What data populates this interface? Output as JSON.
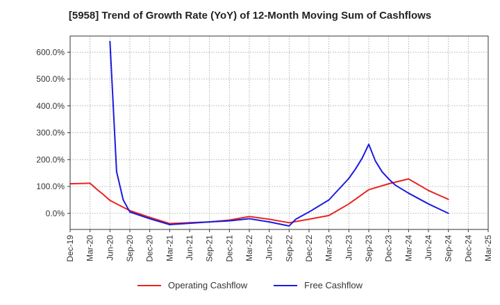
{
  "chart_data": {
    "type": "line",
    "title": "[5958]  Trend of Growth Rate (YoY) of 12-Month Moving Sum of Cashflows",
    "xlabel": "",
    "ylabel": "",
    "x_ticks": [
      "Dec-19",
      "Mar-20",
      "Jun-20",
      "Sep-20",
      "Dec-20",
      "Mar-21",
      "Jun-21",
      "Sep-21",
      "Dec-21",
      "Mar-22",
      "Jun-22",
      "Sep-22",
      "Dec-22",
      "Mar-23",
      "Jun-23",
      "Sep-23",
      "Dec-23",
      "Mar-24",
      "Jun-24",
      "Sep-24",
      "Dec-24",
      "Mar-25"
    ],
    "y_ticks": [
      "0.0%",
      "100.0%",
      "200.0%",
      "300.0%",
      "400.0%",
      "500.0%",
      "600.0%"
    ],
    "y_tick_values": [
      0,
      100,
      200,
      300,
      400,
      500,
      600
    ],
    "ylim": [
      -60,
      660
    ],
    "grid": true,
    "legend_position": "bottom",
    "series": [
      {
        "name": "Operating Cashflow",
        "color": "#e8231e",
        "points": [
          [
            "Dec-19",
            110
          ],
          [
            "Mar-20",
            112
          ],
          [
            "Apr-20",
            90
          ],
          [
            "May-20",
            70
          ],
          [
            "Jun-20",
            48
          ],
          [
            "Sep-20",
            10
          ],
          [
            "Dec-20",
            -15
          ],
          [
            "Mar-21",
            -38
          ],
          [
            "Jun-21",
            -35
          ],
          [
            "Sep-21",
            -32
          ],
          [
            "Dec-21",
            -25
          ],
          [
            "Mar-22",
            -12
          ],
          [
            "Jun-22",
            -22
          ],
          [
            "Sep-22",
            -35
          ],
          [
            "Dec-22",
            -22
          ],
          [
            "Mar-23",
            -8
          ],
          [
            "Jun-23",
            35
          ],
          [
            "Sep-23",
            88
          ],
          [
            "Dec-23",
            110
          ],
          [
            "Mar-24",
            128
          ],
          [
            "Jun-24",
            85
          ],
          [
            "Sep-24",
            52
          ]
        ]
      },
      {
        "name": "Free Cashflow",
        "color": "#1a1ae0",
        "points": [
          [
            "Jun-20",
            640
          ],
          [
            "Jul-20",
            155
          ],
          [
            "Aug-20",
            50
          ],
          [
            "Sep-20",
            5
          ],
          [
            "Dec-20",
            -20
          ],
          [
            "Mar-21",
            -42
          ],
          [
            "Jun-21",
            -37
          ],
          [
            "Sep-21",
            -32
          ],
          [
            "Dec-21",
            -28
          ],
          [
            "Mar-22",
            -20
          ],
          [
            "Jun-22",
            -32
          ],
          [
            "Sep-22",
            -47
          ],
          [
            "Oct-22",
            -22
          ],
          [
            "Dec-22",
            5
          ],
          [
            "Mar-23",
            50
          ],
          [
            "Jun-23",
            130
          ],
          [
            "Jul-23",
            165
          ],
          [
            "Aug-23",
            205
          ],
          [
            "Sep-23",
            257
          ],
          [
            "Oct-23",
            195
          ],
          [
            "Nov-23",
            155
          ],
          [
            "Dec-23",
            128
          ],
          [
            "Jan-24",
            105
          ],
          [
            "Mar-24",
            75
          ],
          [
            "Jun-24",
            35
          ],
          [
            "Sep-24",
            0
          ]
        ]
      }
    ]
  }
}
